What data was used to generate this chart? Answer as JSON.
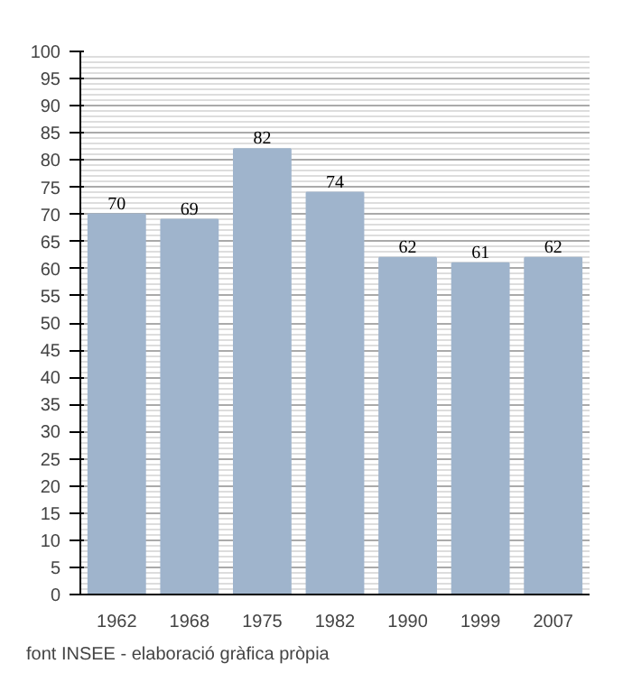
{
  "chart_data": {
    "type": "bar",
    "categories": [
      "1962",
      "1968",
      "1975",
      "1982",
      "1990",
      "1999",
      "2007"
    ],
    "values": [
      70,
      69,
      82,
      74,
      62,
      61,
      62
    ],
    "color": "#9fb4cc",
    "data_labels": true,
    "ylim": [
      0,
      100
    ],
    "yticks": [
      0,
      5,
      10,
      15,
      20,
      25,
      30,
      35,
      40,
      45,
      50,
      55,
      60,
      65,
      70,
      75,
      80,
      85,
      90,
      95,
      100
    ],
    "grid": "y",
    "annotations": [
      "font INSEE - elaboració gràfica pròpia"
    ]
  }
}
